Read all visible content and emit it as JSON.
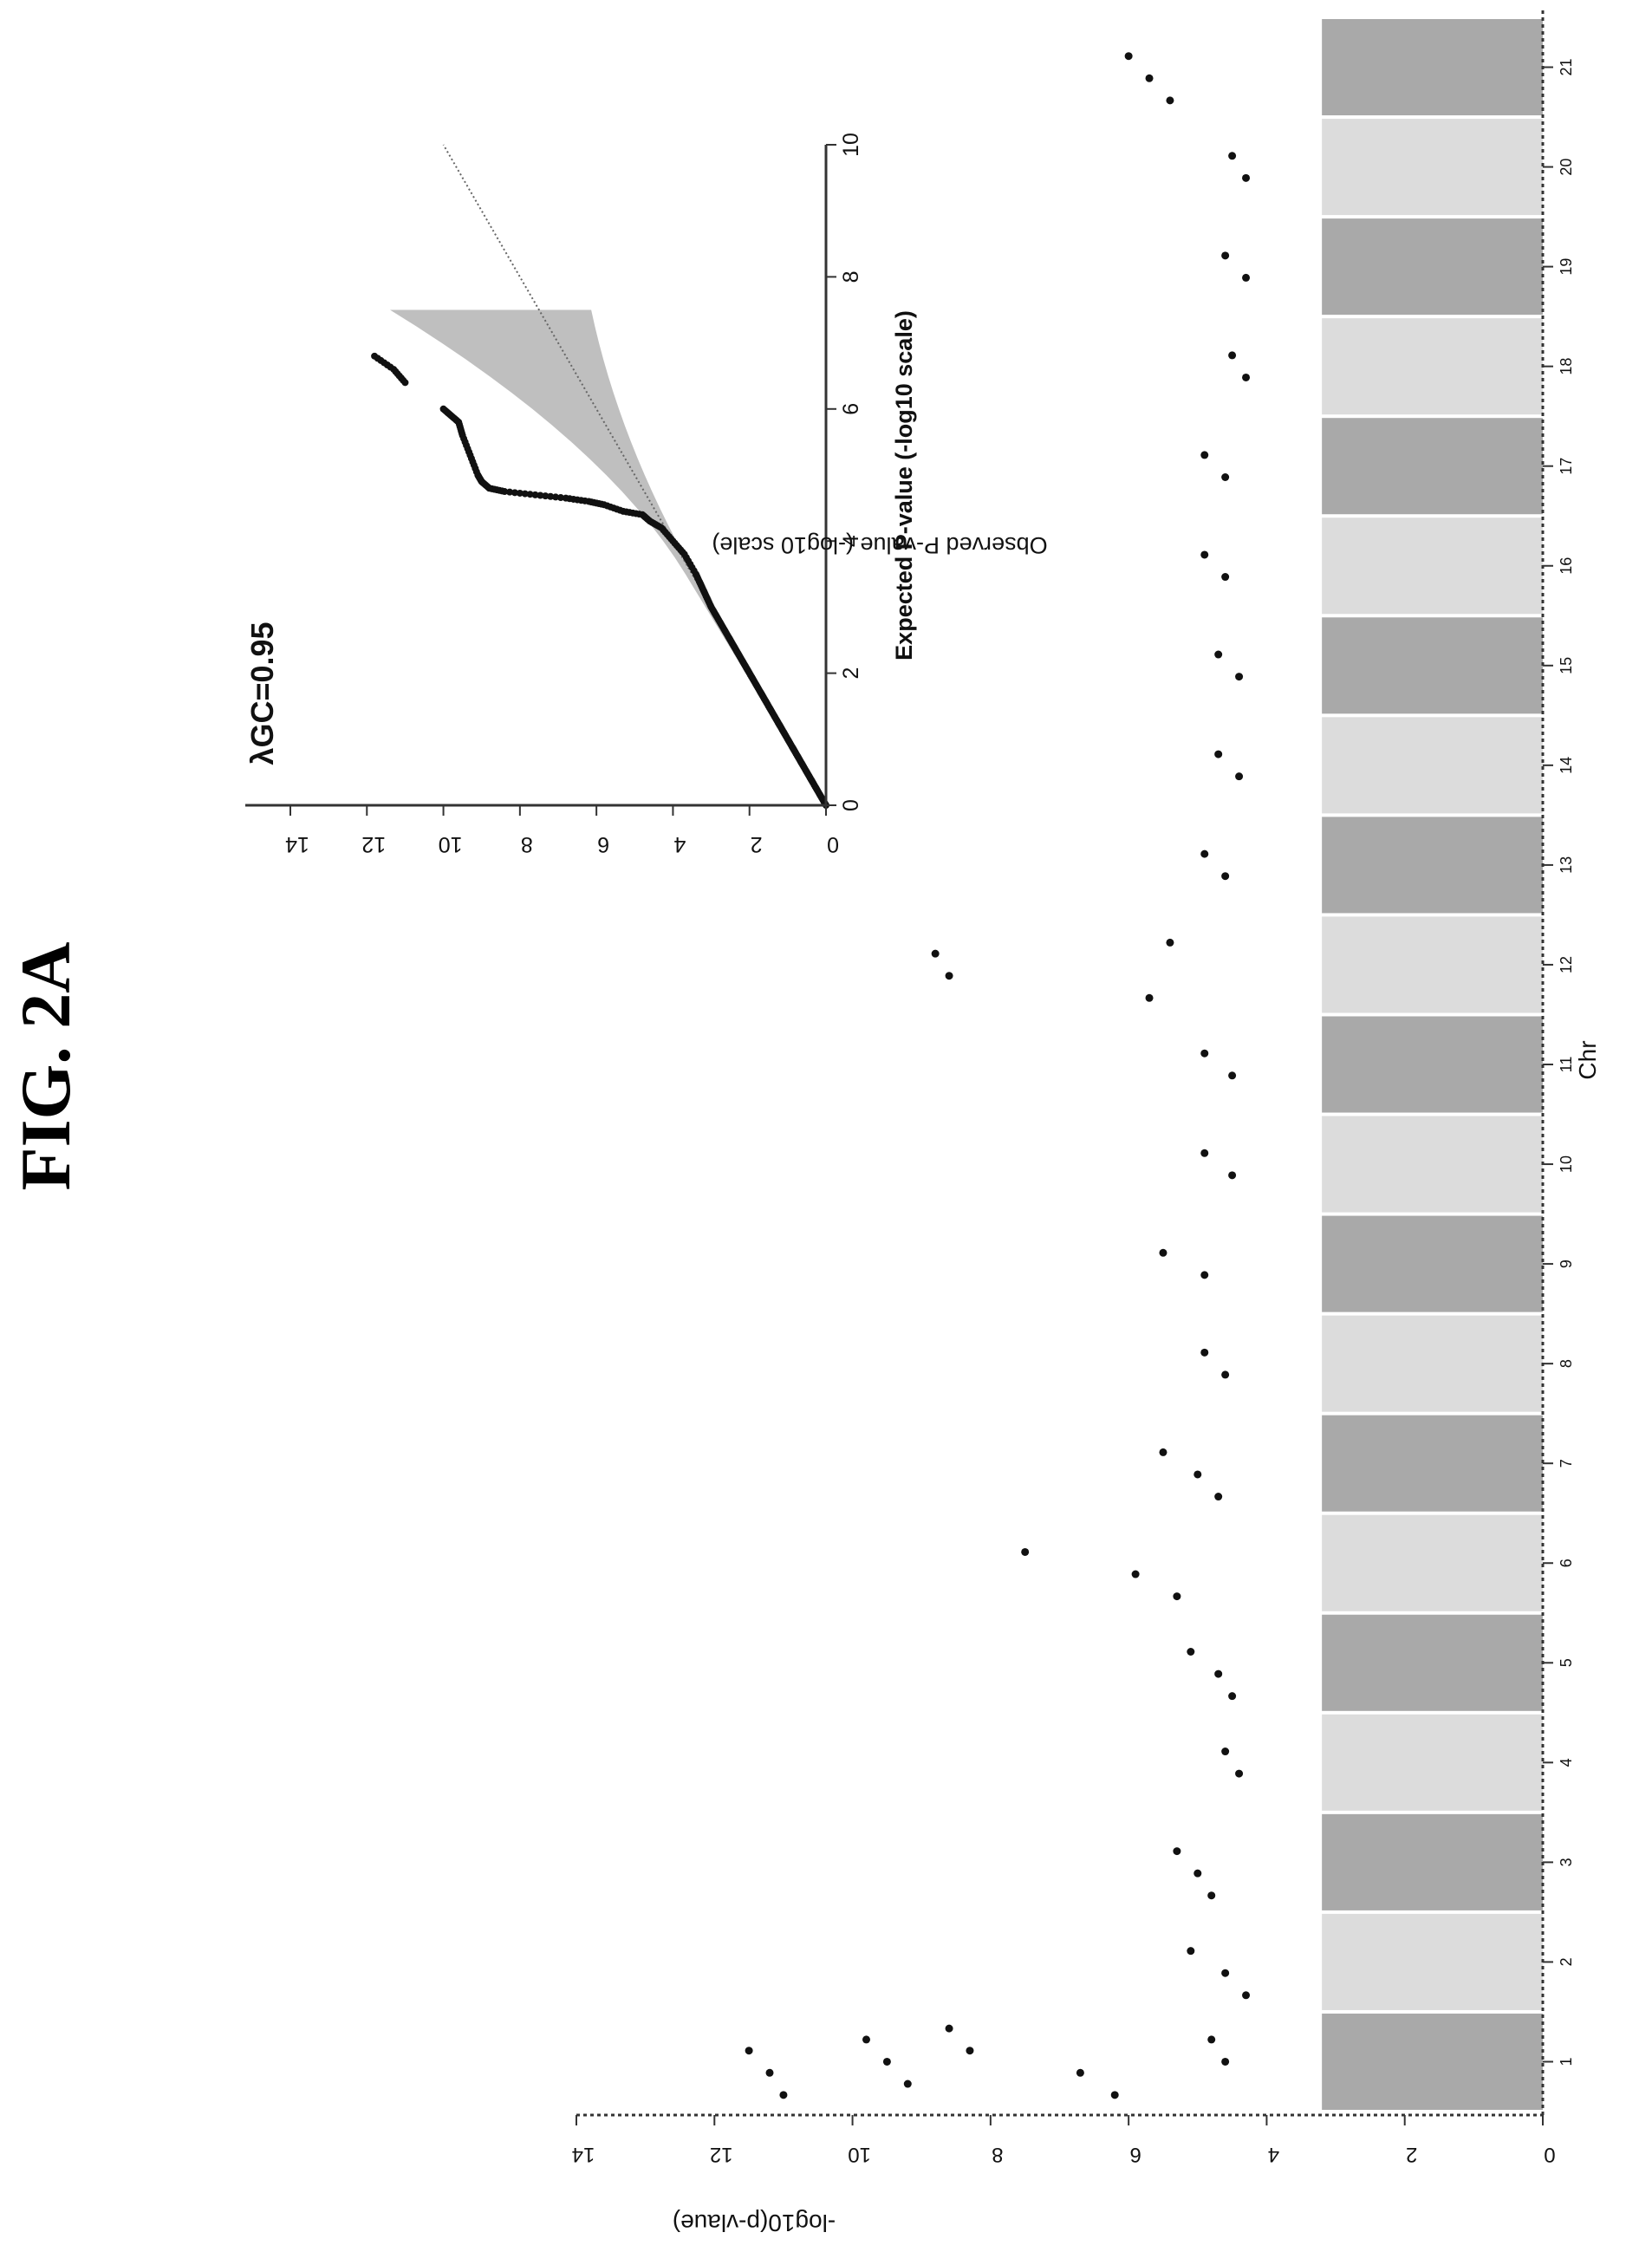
{
  "figure_label": "FIG. 2A",
  "colors": {
    "ink": "#111111",
    "band_dark": "#9a9a9a",
    "band_light": "#d6d6d6",
    "ci_band": "#b8b8b8"
  },
  "chart_data": [
    {
      "type": "scatter",
      "subtype": "manhattan",
      "title": "",
      "xlabel": "Chr",
      "ylabel": "-log10(p-vlaue)",
      "ylim": [
        0,
        14
      ],
      "y_ticks": [
        "0",
        "2",
        "4",
        "6",
        "8",
        "10",
        "12",
        "14"
      ],
      "x_ticks": [
        "1",
        "2",
        "3",
        "4",
        "5",
        "6",
        "7",
        "8",
        "9",
        "10",
        "11",
        "12",
        "13",
        "14",
        "15",
        "16",
        "17",
        "18",
        "19",
        "20",
        "21"
      ],
      "grid": false,
      "legend": "none",
      "series": [
        {
          "points": [
            {
              "chr": "1",
              "y": 11.5
            },
            {
              "chr": "1",
              "y": 11.2
            },
            {
              "chr": "1",
              "y": 11.0
            },
            {
              "chr": "1",
              "y": 9.8
            },
            {
              "chr": "1",
              "y": 9.5
            },
            {
              "chr": "1",
              "y": 9.2
            },
            {
              "chr": "1",
              "y": 8.6
            },
            {
              "chr": "1",
              "y": 8.3
            },
            {
              "chr": "1",
              "y": 6.7
            },
            {
              "chr": "1",
              "y": 6.2
            },
            {
              "chr": "1",
              "y": 4.8
            },
            {
              "chr": "1",
              "y": 4.6
            },
            {
              "chr": "2",
              "y": 5.1
            },
            {
              "chr": "2",
              "y": 4.6
            },
            {
              "chr": "2",
              "y": 4.3
            },
            {
              "chr": "3",
              "y": 5.3
            },
            {
              "chr": "3",
              "y": 5.0
            },
            {
              "chr": "3",
              "y": 4.8
            },
            {
              "chr": "4",
              "y": 4.6
            },
            {
              "chr": "4",
              "y": 4.4
            },
            {
              "chr": "5",
              "y": 5.1
            },
            {
              "chr": "5",
              "y": 4.7
            },
            {
              "chr": "5",
              "y": 4.5
            },
            {
              "chr": "6",
              "y": 7.5
            },
            {
              "chr": "6",
              "y": 5.9
            },
            {
              "chr": "6",
              "y": 5.3
            },
            {
              "chr": "7",
              "y": 5.5
            },
            {
              "chr": "7",
              "y": 5.0
            },
            {
              "chr": "7",
              "y": 4.7
            },
            {
              "chr": "8",
              "y": 4.9
            },
            {
              "chr": "8",
              "y": 4.6
            },
            {
              "chr": "9",
              "y": 5.5
            },
            {
              "chr": "9",
              "y": 4.9
            },
            {
              "chr": "10",
              "y": 4.9
            },
            {
              "chr": "10",
              "y": 4.5
            },
            {
              "chr": "11",
              "y": 4.9
            },
            {
              "chr": "11",
              "y": 4.5
            },
            {
              "chr": "12",
              "y": 8.8
            },
            {
              "chr": "12",
              "y": 8.6
            },
            {
              "chr": "12",
              "y": 5.7
            },
            {
              "chr": "12",
              "y": 5.4
            },
            {
              "chr": "13",
              "y": 4.9
            },
            {
              "chr": "13",
              "y": 4.6
            },
            {
              "chr": "14",
              "y": 4.7
            },
            {
              "chr": "14",
              "y": 4.4
            },
            {
              "chr": "15",
              "y": 4.7
            },
            {
              "chr": "15",
              "y": 4.4
            },
            {
              "chr": "16",
              "y": 4.9
            },
            {
              "chr": "16",
              "y": 4.6
            },
            {
              "chr": "17",
              "y": 4.9
            },
            {
              "chr": "17",
              "y": 4.6
            },
            {
              "chr": "18",
              "y": 4.5
            },
            {
              "chr": "18",
              "y": 4.3
            },
            {
              "chr": "19",
              "y": 4.6
            },
            {
              "chr": "19",
              "y": 4.3
            },
            {
              "chr": "20",
              "y": 4.5
            },
            {
              "chr": "20",
              "y": 4.3
            },
            {
              "chr": "21",
              "y": 6.0
            },
            {
              "chr": "21",
              "y": 5.7
            },
            {
              "chr": "21",
              "y": 5.4
            }
          ]
        }
      ]
    },
    {
      "type": "scatter",
      "subtype": "qq",
      "title": "",
      "annotation": "λGC=0.95",
      "xlabel": "Expected P-value (-log10 scale)",
      "ylabel": "Observed P-value (-log10 scale)",
      "xlim": [
        0,
        10
      ],
      "ylim": [
        0,
        14
      ],
      "x_ticks": [
        "0",
        "2",
        "4",
        "6",
        "8",
        "10"
      ],
      "y_ticks": [
        "0",
        "2",
        "4",
        "6",
        "8",
        "10",
        "12",
        "14"
      ],
      "grid": false,
      "legend": "none",
      "series": [
        {
          "x": [
            0,
            0.5,
            1.0,
            1.5,
            2.0,
            2.5,
            3.0,
            3.5,
            3.8,
            4.0,
            4.2,
            4.3,
            4.4,
            4.45,
            4.55,
            4.6,
            4.65,
            4.7,
            4.75,
            4.8,
            4.9,
            5.0,
            5.3,
            5.6,
            5.8,
            5.9,
            6.0,
            6.4,
            6.6,
            6.8
          ],
          "y": [
            0,
            0.5,
            1.0,
            1.5,
            2.0,
            2.5,
            3.0,
            3.4,
            3.7,
            4.0,
            4.3,
            4.6,
            4.8,
            5.3,
            5.8,
            6.2,
            6.8,
            7.6,
            8.4,
            8.8,
            9.0,
            9.1,
            9.3,
            9.5,
            9.6,
            9.8,
            10.0,
            11.0,
            11.3,
            11.8
          ]
        }
      ],
      "null_line": {
        "x": [
          0,
          10
        ],
        "y": [
          0,
          10
        ]
      }
    }
  ]
}
